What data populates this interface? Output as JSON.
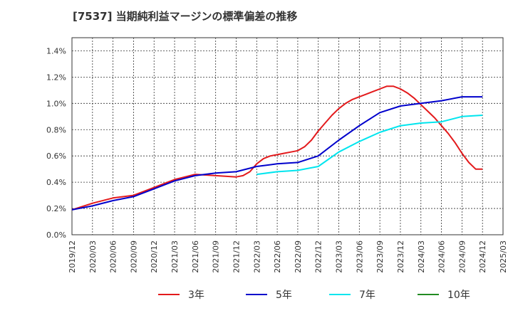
{
  "chart_data": {
    "type": "line",
    "title": "[7537]  当期純利益マージンの標準偏差の推移",
    "xlabel": "",
    "ylabel": "",
    "ylim": [
      0,
      0.015
    ],
    "grid": true,
    "legend_position": "bottom",
    "x_ticks": [
      "2019/12",
      "2020/03",
      "2020/06",
      "2020/09",
      "2020/12",
      "2021/03",
      "2021/06",
      "2021/09",
      "2021/12",
      "2022/03",
      "2022/06",
      "2022/09",
      "2022/12",
      "2023/03",
      "2023/06",
      "2023/09",
      "2023/12",
      "2024/03",
      "2024/06",
      "2024/09",
      "2024/12",
      "2025/03"
    ],
    "y_ticks": [
      "0.0%",
      "0.2%",
      "0.4%",
      "0.6%",
      "0.8%",
      "1.0%",
      "1.2%",
      "1.4%"
    ],
    "series": [
      {
        "name": "3年",
        "color": "#e31a1c",
        "x": [
          "2019/12",
          "2020/03",
          "2020/06",
          "2020/09",
          "2020/12",
          "2021/03",
          "2021/06",
          "2021/09",
          "2021/12",
          "2022/01",
          "2022/02",
          "2022/03",
          "2022/04",
          "2022/05",
          "2022/06",
          "2022/07",
          "2022/08",
          "2022/09",
          "2022/10",
          "2022/11",
          "2022/12",
          "2023/01",
          "2023/02",
          "2023/03",
          "2023/04",
          "2023/05",
          "2023/06",
          "2023/07",
          "2023/08",
          "2023/09",
          "2023/10",
          "2023/11",
          "2023/12",
          "2024/01",
          "2024/02",
          "2024/03",
          "2024/04",
          "2024/05",
          "2024/06",
          "2024/07",
          "2024/08",
          "2024/09",
          "2024/10",
          "2024/11",
          "2024/12"
        ],
        "values": [
          0.0019,
          0.0024,
          0.0028,
          0.003,
          0.0036,
          0.0042,
          0.0046,
          0.0045,
          0.0044,
          0.0045,
          0.0048,
          0.0054,
          0.0058,
          0.006,
          0.0061,
          0.0062,
          0.0063,
          0.0064,
          0.0067,
          0.0072,
          0.0079,
          0.0085,
          0.0091,
          0.0096,
          0.01,
          0.0103,
          0.0105,
          0.0107,
          0.0109,
          0.0111,
          0.0113,
          0.0113,
          0.0111,
          0.0108,
          0.0104,
          0.0099,
          0.0094,
          0.0089,
          0.0083,
          0.0077,
          0.007,
          0.0062,
          0.0055,
          0.005,
          0.005
        ]
      },
      {
        "name": "5年",
        "color": "#0000cc",
        "x": [
          "2019/12",
          "2020/03",
          "2020/06",
          "2020/09",
          "2020/12",
          "2021/03",
          "2021/06",
          "2021/09",
          "2021/12",
          "2022/03",
          "2022/06",
          "2022/09",
          "2022/12",
          "2023/03",
          "2023/06",
          "2023/09",
          "2023/12",
          "2024/03",
          "2024/06",
          "2024/09",
          "2024/12"
        ],
        "values": [
          0.0019,
          0.0022,
          0.0026,
          0.0029,
          0.0035,
          0.0041,
          0.0045,
          0.0047,
          0.0048,
          0.0052,
          0.0054,
          0.0055,
          0.006,
          0.0072,
          0.0083,
          0.0093,
          0.0098,
          0.01,
          0.0102,
          0.0105,
          0.0105
        ]
      },
      {
        "name": "7年",
        "color": "#00e5ee",
        "x": [
          "2022/03",
          "2022/06",
          "2022/09",
          "2022/12",
          "2023/03",
          "2023/06",
          "2023/09",
          "2023/12",
          "2024/03",
          "2024/06",
          "2024/09",
          "2024/12"
        ],
        "values": [
          0.0046,
          0.0048,
          0.0049,
          0.0052,
          0.0063,
          0.0071,
          0.0078,
          0.0083,
          0.0085,
          0.0086,
          0.009,
          0.0091
        ]
      },
      {
        "name": "10年",
        "color": "#228b22",
        "x": [],
        "values": []
      }
    ]
  }
}
